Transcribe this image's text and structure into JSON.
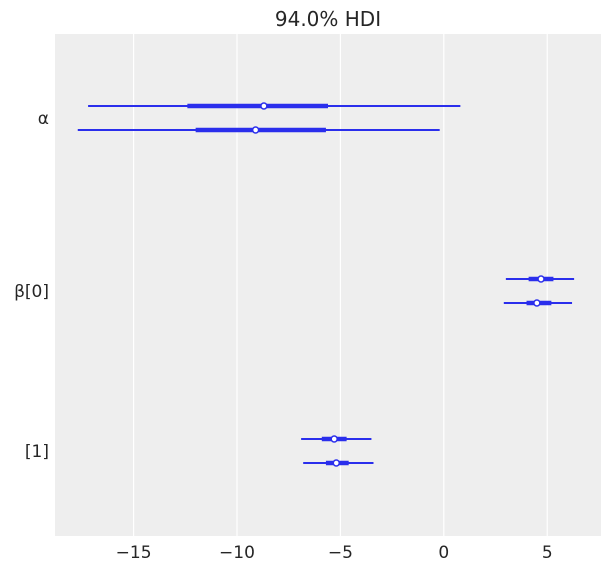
{
  "chart_data": {
    "type": "forest",
    "title": "94.0% HDI",
    "xlim": [
      -18.8,
      7.6
    ],
    "x_ticks": [
      -15,
      -10,
      -5,
      0,
      5
    ],
    "x_tick_labels": [
      "−15",
      "−10",
      "−5",
      "0",
      "5"
    ],
    "grid": "vertical",
    "line_color": "#2a2eec",
    "background_color": "#eeeeee",
    "variables": [
      {
        "label": "α",
        "chains": [
          {
            "median": -8.7,
            "iqr": [
              -12.4,
              -5.6
            ],
            "hdi": [
              -17.2,
              0.8
            ]
          },
          {
            "median": -9.1,
            "iqr": [
              -12.0,
              -5.7
            ],
            "hdi": [
              -17.7,
              -0.2
            ]
          }
        ]
      },
      {
        "label": "β[0]",
        "chains": [
          {
            "median": 4.7,
            "iqr": [
              4.1,
              5.3
            ],
            "hdi": [
              3.0,
              6.3
            ]
          },
          {
            "median": 4.5,
            "iqr": [
              4.0,
              5.2
            ],
            "hdi": [
              2.9,
              6.2
            ]
          }
        ]
      },
      {
        "label": "[1]",
        "chains": [
          {
            "median": -5.3,
            "iqr": [
              -5.9,
              -4.7
            ],
            "hdi": [
              -6.9,
              -3.5
            ]
          },
          {
            "median": -5.2,
            "iqr": [
              -5.7,
              -4.6
            ],
            "hdi": [
              -6.8,
              -3.4
            ]
          }
        ]
      }
    ]
  }
}
